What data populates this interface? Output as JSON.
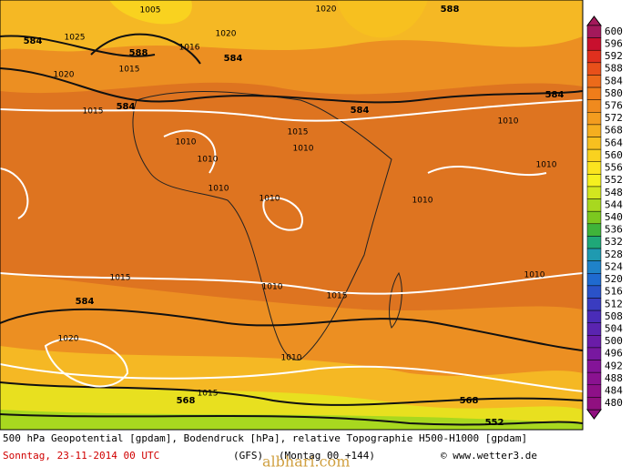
{
  "map": {
    "contour_labels": [
      "588",
      "584",
      "1025",
      "1020",
      "1015",
      "1005",
      "1016",
      "1020",
      "584",
      "1015",
      "584",
      "1010",
      "1010",
      "1010",
      "1015",
      "1010",
      "1010",
      "1010",
      "1010",
      "1010",
      "1010",
      "584",
      "584",
      "1015",
      "1010",
      "1015",
      "1020",
      "584",
      "568",
      "1015",
      "568",
      "552",
      "588",
      "1020",
      "1010"
    ],
    "watermark": "albhari.com"
  },
  "colorbar": {
    "labels": [
      600,
      596,
      592,
      588,
      584,
      580,
      576,
      572,
      568,
      564,
      560,
      556,
      552,
      548,
      544,
      540,
      536,
      532,
      528,
      524,
      520,
      516,
      512,
      508,
      504,
      500,
      496,
      492,
      488,
      484,
      480
    ],
    "colors": [
      "#a3195b",
      "#c8102e",
      "#e0301e",
      "#e8501a",
      "#ec6a1a",
      "#ef7d1a",
      "#f08a1e",
      "#f39c1f",
      "#f5ae1f",
      "#f7c01f",
      "#f9d21f",
      "#fbe41f",
      "#f5f01f",
      "#d2e61f",
      "#a8d81f",
      "#7cc81f",
      "#3fb43a",
      "#1fa878",
      "#1f9ab0",
      "#1f82c8",
      "#1f6ad0",
      "#2a52c8",
      "#3a3cc0",
      "#4a2cb8",
      "#5a24b0",
      "#6a1ca8",
      "#7818a0",
      "#841498",
      "#8a1290",
      "#8e1088",
      "#901080"
    ]
  },
  "footer": {
    "line1": "500 hPa Geopotential [gpdam], Bodendruck [hPa], relative Topographie H500-H1000 [gpdam]",
    "date": "Sonntag, 23-11-2014  00 UTC",
    "model": "(GFS)",
    "valid": "(Montag 00 +144)",
    "copyright": "© www.wetter3.de"
  }
}
